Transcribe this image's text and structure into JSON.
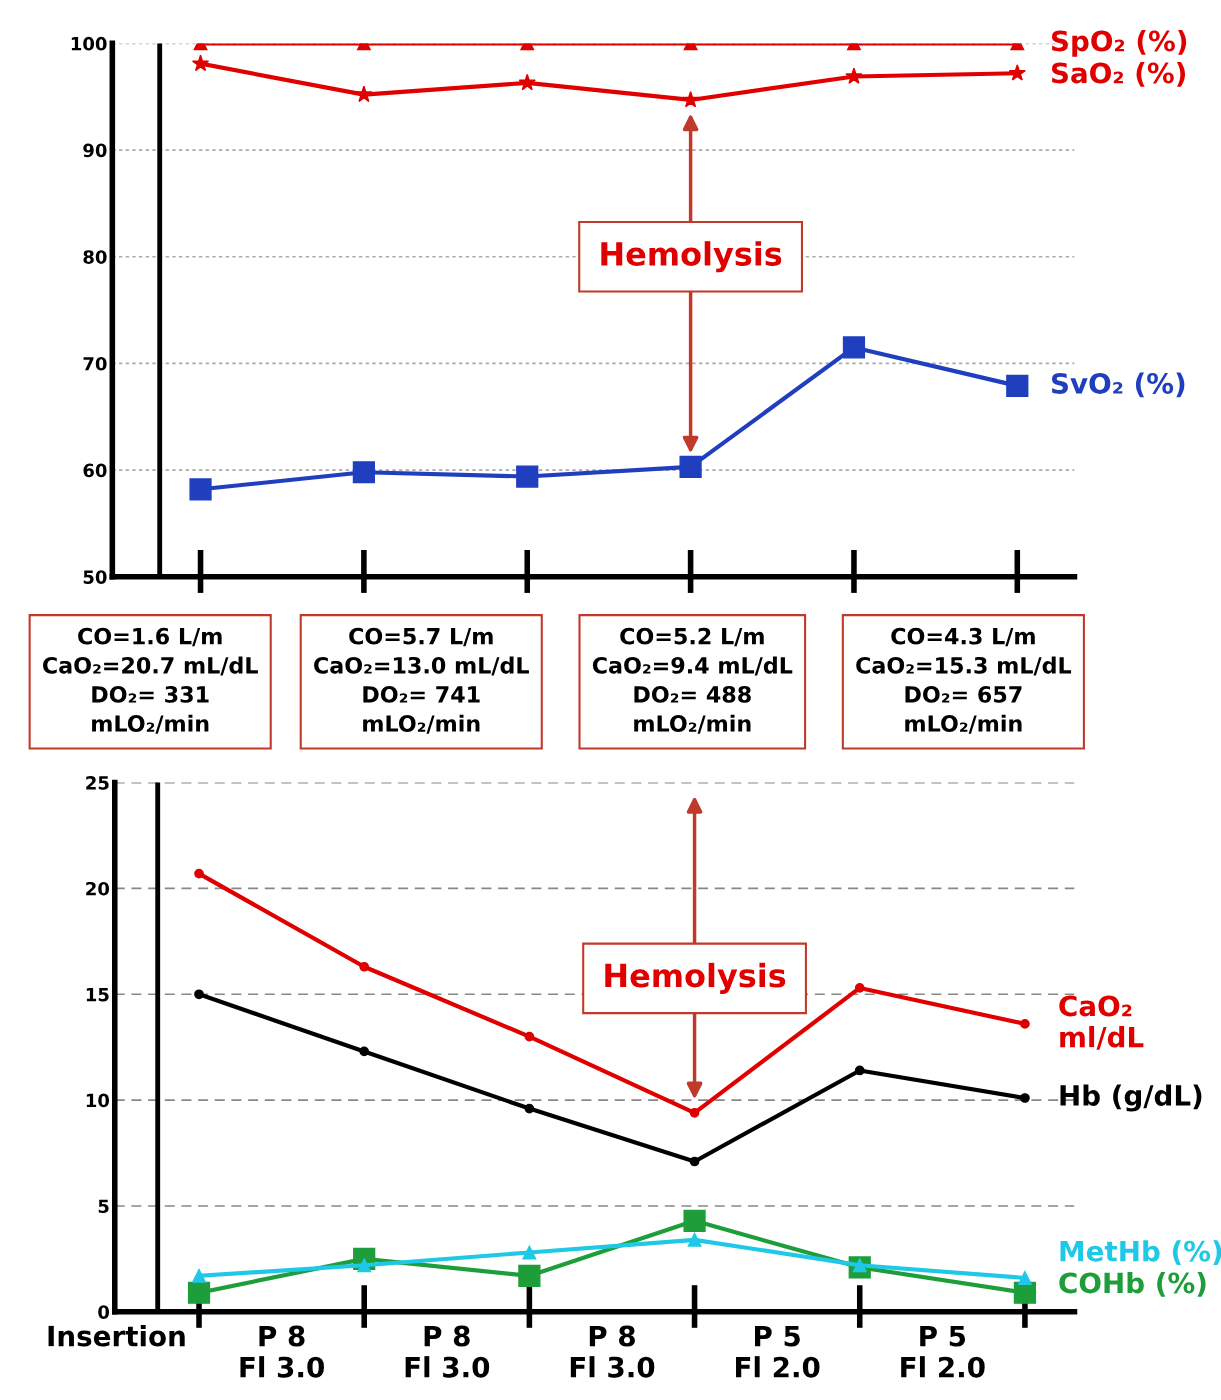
{
  "chart_data": [
    {
      "type": "line",
      "categories": [
        null,
        null,
        null,
        null,
        null,
        null
      ],
      "ylim": [
        50,
        100
      ],
      "yticks": [
        50,
        60,
        70,
        80,
        90,
        100
      ],
      "grid": "y",
      "legend": "right",
      "series": [
        {
          "name": "SpO₂ (%)",
          "color": "#e00000",
          "marker": "triangle",
          "values": [
            100,
            100,
            100,
            100,
            100,
            100
          ]
        },
        {
          "name": "SaO₂ (%)",
          "color": "#e00000",
          "marker": "star",
          "values": [
            98.1,
            95.2,
            96.3,
            94.7,
            96.9,
            97.2
          ]
        },
        {
          "name": "SvO₂ (%)",
          "color": "#1f3fbf",
          "marker": "square",
          "values": [
            58.2,
            59.8,
            59.4,
            60.3,
            71.5,
            67.9
          ]
        }
      ],
      "annotations": [
        "Hemolysis",
        "CO=1.6 L/m\nCaO₂=20.7 mL/dL\nDO₂= 331\nmLO₂/min",
        "CO=5.7 L/m\nCaO₂=13.0 mL/dL\nDO₂= 741\nmLO₂/min",
        "CO=5.2 L/m\nCaO₂=9.4 mL/dL\nDO₂= 488\nmLO₂/min",
        "CO=4.3 L/m\nCaO₂=15.3 mL/dL\nDO₂= 657\nmLO₂/min"
      ]
    },
    {
      "type": "line",
      "categories": [
        null,
        null,
        null,
        null,
        null,
        null
      ],
      "ylim": [
        0,
        25
      ],
      "yticks": [
        0,
        5,
        10,
        15,
        20,
        25
      ],
      "grid": "y",
      "legend": "right",
      "series": [
        {
          "name": "CaO₂\nml/dL",
          "color": "#e00000",
          "marker": "circle",
          "values": [
            20.7,
            16.3,
            13.0,
            9.4,
            15.3,
            13.6
          ]
        },
        {
          "name": "Hb (g/dL)",
          "color": "#000000",
          "marker": "circle",
          "values": [
            15.0,
            12.3,
            9.6,
            7.1,
            11.4,
            10.1
          ]
        },
        {
          "name": "COHb (%)",
          "color": "#1e9e3a",
          "marker": "square",
          "values": [
            0.9,
            2.5,
            1.7,
            4.3,
            2.1,
            0.9
          ]
        },
        {
          "name": "MetHb (%)",
          "color": "#1ec8e6",
          "marker": "triangle",
          "values": [
            1.7,
            2.2,
            2.8,
            3.4,
            2.2,
            1.6
          ]
        }
      ],
      "annotations": [
        "Hemolysis",
        "Insertion",
        "P 8\nFl 3.0",
        "P 8\nFl 3.0",
        "P 8\nFl 3.0",
        "P 5\nFl 2.0",
        "P 5\nFl 2.0"
      ]
    }
  ]
}
